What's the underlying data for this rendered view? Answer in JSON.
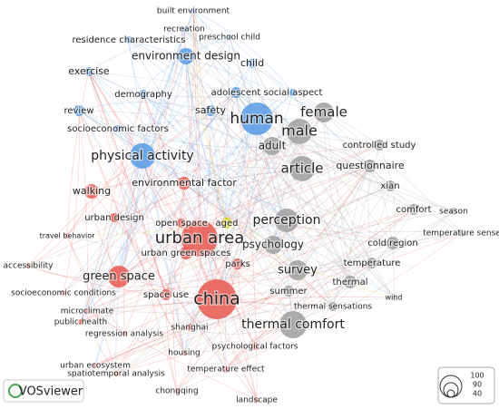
{
  "clusters": {
    "blue": "#5e9ee6",
    "red": "#e8605a",
    "yellow": "#d4d31e",
    "gray": "#a3a3a3"
  },
  "nodes": [
    {
      "label": "built environment",
      "cluster": "blue"
    },
    {
      "label": "recreation",
      "cluster": "blue"
    },
    {
      "label": "residence characteristics",
      "cluster": "blue"
    },
    {
      "label": "preschool child",
      "cluster": "blue"
    },
    {
      "label": "environment design",
      "cluster": "blue"
    },
    {
      "label": "exercise",
      "cluster": "blue"
    },
    {
      "label": "child",
      "cluster": "blue"
    },
    {
      "label": "demography",
      "cluster": "blue"
    },
    {
      "label": "adolescent",
      "cluster": "blue"
    },
    {
      "label": "social aspect",
      "cluster": "blue"
    },
    {
      "label": "review",
      "cluster": "blue"
    },
    {
      "label": "safety",
      "cluster": "blue"
    },
    {
      "label": "socioeconomic factors",
      "cluster": "blue"
    },
    {
      "label": "human",
      "cluster": "blue"
    },
    {
      "label": "physical activity",
      "cluster": "blue"
    },
    {
      "label": "walking",
      "cluster": "red"
    },
    {
      "label": "environmental factor",
      "cluster": "red"
    },
    {
      "label": "urban design",
      "cluster": "red"
    },
    {
      "label": "open space",
      "cluster": "red"
    },
    {
      "label": "urban area",
      "cluster": "red"
    },
    {
      "label": "urban green spaces",
      "cluster": "red"
    },
    {
      "label": "travel behavior",
      "cluster": "red"
    },
    {
      "label": "accessibility",
      "cluster": "red"
    },
    {
      "label": "parks",
      "cluster": "red"
    },
    {
      "label": "green space",
      "cluster": "red"
    },
    {
      "label": "socioeconomic conditions",
      "cluster": "red"
    },
    {
      "label": "space use",
      "cluster": "red"
    },
    {
      "label": "china",
      "cluster": "red"
    },
    {
      "label": "microclimate",
      "cluster": "red"
    },
    {
      "label": "public health",
      "cluster": "red"
    },
    {
      "label": "shanghai",
      "cluster": "red"
    },
    {
      "label": "regression analysis",
      "cluster": "red"
    },
    {
      "label": "housing",
      "cluster": "red"
    },
    {
      "label": "urban ecosystem",
      "cluster": "red"
    },
    {
      "label": "spatiotemporal analysis",
      "cluster": "red"
    },
    {
      "label": "chongqing",
      "cluster": "red"
    },
    {
      "label": "temperature effect",
      "cluster": "red"
    },
    {
      "label": "landscape",
      "cluster": "red"
    },
    {
      "label": "psychological factors",
      "cluster": "red"
    },
    {
      "label": "aged",
      "cluster": "yellow"
    },
    {
      "label": "female",
      "cluster": "gray"
    },
    {
      "label": "male",
      "cluster": "gray"
    },
    {
      "label": "adult",
      "cluster": "gray"
    },
    {
      "label": "controlled study",
      "cluster": "gray"
    },
    {
      "label": "article",
      "cluster": "gray"
    },
    {
      "label": "questionnaire",
      "cluster": "gray"
    },
    {
      "label": "xian",
      "cluster": "gray"
    },
    {
      "label": "comfort",
      "cluster": "gray"
    },
    {
      "label": "season",
      "cluster": "gray"
    },
    {
      "label": "perception",
      "cluster": "gray"
    },
    {
      "label": "temperature sense",
      "cluster": "gray"
    },
    {
      "label": "cold region",
      "cluster": "gray"
    },
    {
      "label": "psychology",
      "cluster": "gray"
    },
    {
      "label": "survey",
      "cluster": "gray"
    },
    {
      "label": "temperature",
      "cluster": "gray"
    },
    {
      "label": "thermal",
      "cluster": "gray"
    },
    {
      "label": "summer",
      "cluster": "gray"
    },
    {
      "label": "thermal sensations",
      "cluster": "gray"
    },
    {
      "label": "wind",
      "cluster": "gray"
    },
    {
      "label": "thermal comfort",
      "cluster": "gray"
    }
  ],
  "legend": {
    "brand": "VOSviewer",
    "sizes": [
      100,
      90,
      40
    ]
  }
}
